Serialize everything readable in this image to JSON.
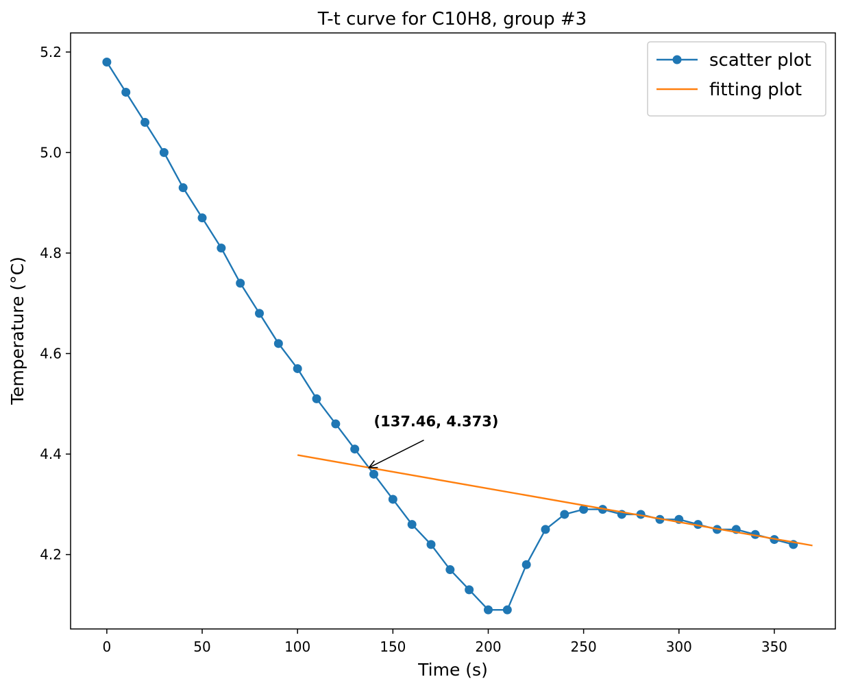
{
  "chart_data": {
    "type": "line",
    "title": "T-t curve for C10H8, group #3",
    "xlabel": "Time (s)",
    "ylabel": "Temperature (°C)",
    "xlim": [
      -19,
      382
    ],
    "ylim": [
      4.052,
      5.238
    ],
    "xticks": [
      0,
      50,
      100,
      150,
      200,
      250,
      300,
      350
    ],
    "yticks": [
      4.2,
      4.4,
      4.6,
      4.8,
      5.0,
      5.2
    ],
    "xtick_labels": [
      "0",
      "50",
      "100",
      "150",
      "200",
      "250",
      "300",
      "350"
    ],
    "ytick_labels": [
      "4.2",
      "4.4",
      "4.6",
      "4.8",
      "5.0",
      "5.2"
    ],
    "grid": false,
    "legend_position": "top-right",
    "series": [
      {
        "name": "scatter plot",
        "kind": "line+markers",
        "color": "#1f77b4",
        "x": [
          0,
          10,
          20,
          30,
          40,
          50,
          60,
          70,
          80,
          90,
          100,
          110,
          120,
          130,
          140,
          150,
          160,
          170,
          180,
          190,
          200,
          210,
          220,
          230,
          240,
          250,
          260,
          270,
          280,
          290,
          300,
          310,
          320,
          330,
          340,
          350,
          360
        ],
        "y": [
          5.18,
          5.12,
          5.06,
          5.0,
          4.93,
          4.87,
          4.81,
          4.74,
          4.68,
          4.62,
          4.57,
          4.51,
          4.46,
          4.41,
          4.36,
          4.31,
          4.26,
          4.22,
          4.17,
          4.13,
          4.09,
          4.09,
          4.18,
          4.25,
          4.28,
          4.29,
          4.29,
          4.28,
          4.28,
          4.27,
          4.27,
          4.26,
          4.25,
          4.25,
          4.24,
          4.23,
          4.22
        ]
      },
      {
        "name": "fitting plot",
        "kind": "line",
        "color": "#ff7f0e",
        "x": [
          100,
          370
        ],
        "y": [
          4.398,
          4.218
        ]
      }
    ],
    "annotation": {
      "text": "(137.46, 4.373)",
      "point": [
        137.46,
        4.373
      ],
      "text_anchor_data": [
        140,
        4.455
      ]
    }
  }
}
